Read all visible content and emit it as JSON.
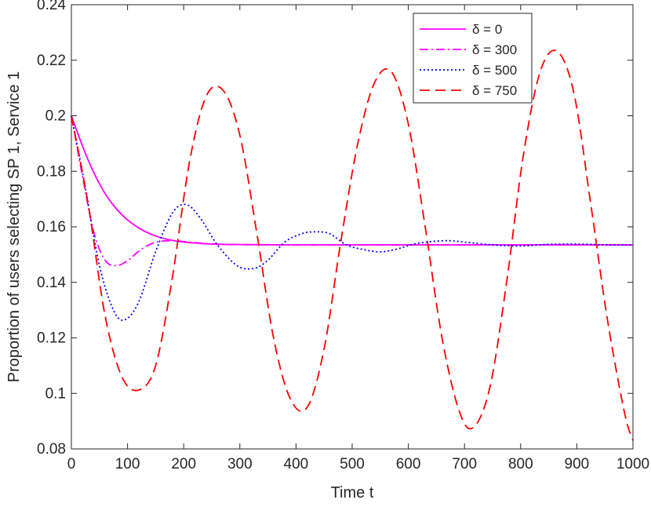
{
  "chart_data": {
    "type": "line",
    "title": "",
    "xlabel": "Time t",
    "ylabel": "Proportion of users selecting SP 1, Service 1",
    "xlim": [
      0,
      1000
    ],
    "ylim": [
      0.08,
      0.24
    ],
    "xticks": [
      0,
      100,
      200,
      300,
      400,
      500,
      600,
      700,
      800,
      900,
      1000
    ],
    "yticks": [
      0.08,
      0.1,
      0.12,
      0.14,
      0.16,
      0.18,
      0.2,
      0.22,
      0.24
    ],
    "xtick_labels": [
      "0",
      "100",
      "200",
      "300",
      "400",
      "500",
      "600",
      "700",
      "800",
      "900",
      "1000"
    ],
    "ytick_labels": [
      "0.08",
      "0.1",
      "0.12",
      "0.14",
      "0.16",
      "0.18",
      "0.2",
      "0.22",
      "0.24"
    ],
    "grid": false,
    "legend_position": "top-right",
    "series": [
      {
        "name": "δ = 0",
        "color": "#ff00ff",
        "style": "solid",
        "x": [
          0,
          20,
          40,
          60,
          80,
          100,
          125,
          150,
          175,
          200,
          250,
          300,
          400,
          500,
          600,
          700,
          800,
          900,
          1000
        ],
        "y": [
          0.2,
          0.189,
          0.1795,
          0.172,
          0.1665,
          0.1625,
          0.159,
          0.1567,
          0.1553,
          0.1545,
          0.1538,
          0.1536,
          0.1535,
          0.1535,
          0.1535,
          0.1535,
          0.1535,
          0.1535,
          0.1535
        ]
      },
      {
        "name": "δ = 300",
        "color": "#ff00ff",
        "style": "dashdot",
        "x": [
          0,
          20,
          40,
          60,
          80,
          100,
          120,
          140,
          160,
          180,
          200,
          250,
          300,
          400,
          500,
          600,
          700,
          800,
          900,
          1000
        ],
        "y": [
          0.2,
          0.178,
          0.158,
          0.148,
          0.146,
          0.1478,
          0.1512,
          0.1537,
          0.1548,
          0.155,
          0.1547,
          0.1538,
          0.1536,
          0.1535,
          0.1535,
          0.1535,
          0.1535,
          0.1535,
          0.1535,
          0.1535
        ]
      },
      {
        "name": "δ = 500",
        "color": "#0000ff",
        "style": "dotted",
        "x": [
          0,
          25,
          50,
          75,
          95,
          120,
          150,
          180,
          205,
          230,
          260,
          295,
          325,
          350,
          380,
          410,
          435,
          460,
          490,
          520,
          550,
          580,
          615,
          665,
          700,
          750,
          800,
          850,
          900,
          950,
          1000
        ],
        "y": [
          0.2,
          0.174,
          0.146,
          0.13,
          0.1265,
          0.133,
          0.151,
          0.165,
          0.168,
          0.163,
          0.1535,
          0.146,
          0.145,
          0.148,
          0.1545,
          0.1575,
          0.1582,
          0.1575,
          0.1535,
          0.1518,
          0.151,
          0.152,
          0.154,
          0.155,
          0.1545,
          0.1535,
          0.1531,
          0.1537,
          0.1538,
          0.1535,
          0.1534
        ]
      },
      {
        "name": "δ = 750",
        "color": "#ff0000",
        "style": "dashed",
        "x": [
          0,
          30,
          60,
          90,
          120,
          150,
          180,
          210,
          240,
          270,
          300,
          330,
          360,
          390,
          420,
          450,
          480,
          510,
          540,
          570,
          600,
          630,
          660,
          690,
          715,
          745,
          775,
          805,
          835,
          865,
          895,
          925,
          955,
          985,
          1000
        ],
        "y": [
          0.2,
          0.168,
          0.128,
          0.106,
          0.1012,
          0.11,
          0.142,
          0.183,
          0.207,
          0.2092,
          0.193,
          0.158,
          0.12,
          0.098,
          0.095,
          0.116,
          0.155,
          0.19,
          0.212,
          0.2158,
          0.197,
          0.16,
          0.12,
          0.094,
          0.0876,
          0.102,
          0.14,
          0.186,
          0.216,
          0.2232,
          0.208,
          0.168,
          0.126,
          0.093,
          0.083
        ]
      }
    ]
  }
}
